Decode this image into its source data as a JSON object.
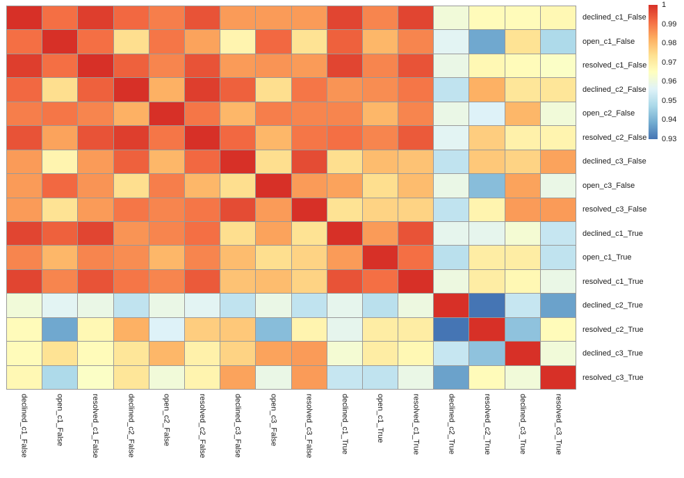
{
  "chart_data": {
    "type": "heatmap",
    "title": "",
    "xlabel": "",
    "ylabel": "",
    "grid_line_color": "#999999",
    "background_color": "#ffffff",
    "categories": [
      "declined_c1_False",
      "open_c1_False",
      "resolved_c1_False",
      "declined_c2_False",
      "open_c2_False",
      "resolved_c2_False",
      "declined_c3_False",
      "open_c3_False",
      "resolved_c3_False",
      "declined_c1_True",
      "open_c1_True",
      "resolved_c1_True",
      "declined_c2_True",
      "resolved_c2_True",
      "declined_c3_True",
      "resolved_c3_True"
    ],
    "matrix": [
      [
        1.0,
        0.991,
        0.998,
        0.992,
        0.989,
        0.995,
        0.985,
        0.985,
        0.985,
        0.997,
        0.988,
        0.997,
        0.961,
        0.966,
        0.966,
        0.967
      ],
      [
        0.991,
        1.0,
        0.991,
        0.974,
        0.99,
        0.984,
        0.968,
        0.992,
        0.973,
        0.993,
        0.981,
        0.988,
        0.957,
        0.938,
        0.973,
        0.948
      ],
      [
        0.998,
        0.991,
        1.0,
        0.993,
        0.988,
        0.995,
        0.985,
        0.986,
        0.985,
        0.997,
        0.988,
        0.995,
        0.959,
        0.967,
        0.966,
        0.964
      ],
      [
        0.992,
        0.974,
        0.993,
        1.0,
        0.982,
        0.998,
        0.993,
        0.974,
        0.99,
        0.986,
        0.987,
        0.99,
        0.951,
        0.982,
        0.972,
        0.972
      ],
      [
        0.989,
        0.99,
        0.988,
        0.982,
        1.0,
        0.99,
        0.981,
        0.989,
        0.988,
        0.988,
        0.981,
        0.988,
        0.959,
        0.956,
        0.981,
        0.961
      ],
      [
        0.995,
        0.984,
        0.995,
        0.998,
        0.99,
        1.0,
        0.992,
        0.981,
        0.99,
        0.991,
        0.988,
        0.994,
        0.957,
        0.977,
        0.969,
        0.968
      ],
      [
        0.985,
        0.968,
        0.985,
        0.993,
        0.981,
        0.992,
        1.0,
        0.974,
        0.996,
        0.974,
        0.98,
        0.979,
        0.951,
        0.978,
        0.976,
        0.984
      ],
      [
        0.985,
        0.992,
        0.986,
        0.974,
        0.989,
        0.981,
        0.974,
        1.0,
        0.985,
        0.984,
        0.974,
        0.98,
        0.959,
        0.942,
        0.984,
        0.959
      ],
      [
        0.985,
        0.973,
        0.985,
        0.99,
        0.988,
        0.99,
        0.996,
        0.985,
        1.0,
        0.973,
        0.976,
        0.976,
        0.951,
        0.968,
        0.985,
        0.985
      ],
      [
        0.997,
        0.993,
        0.997,
        0.986,
        0.988,
        0.991,
        0.974,
        0.984,
        0.973,
        1.0,
        0.985,
        0.995,
        0.958,
        0.958,
        0.962,
        0.952
      ],
      [
        0.988,
        0.981,
        0.988,
        0.987,
        0.981,
        0.988,
        0.98,
        0.974,
        0.976,
        0.985,
        1.0,
        0.991,
        0.95,
        0.97,
        0.97,
        0.951
      ],
      [
        0.997,
        0.988,
        0.995,
        0.99,
        0.988,
        0.994,
        0.979,
        0.98,
        0.976,
        0.995,
        0.991,
        1.0,
        0.96,
        0.97,
        0.967,
        0.959
      ],
      [
        0.961,
        0.957,
        0.959,
        0.951,
        0.959,
        0.957,
        0.951,
        0.959,
        0.951,
        0.958,
        0.95,
        0.96,
        1.0,
        0.93,
        0.952,
        0.937
      ],
      [
        0.966,
        0.938,
        0.967,
        0.982,
        0.956,
        0.977,
        0.978,
        0.942,
        0.968,
        0.958,
        0.97,
        0.97,
        0.93,
        1.0,
        0.943,
        0.966
      ],
      [
        0.966,
        0.973,
        0.966,
        0.972,
        0.981,
        0.969,
        0.976,
        0.984,
        0.985,
        0.962,
        0.97,
        0.967,
        0.952,
        0.943,
        1.0,
        0.961
      ],
      [
        0.967,
        0.948,
        0.964,
        0.972,
        0.961,
        0.968,
        0.984,
        0.959,
        0.985,
        0.952,
        0.951,
        0.959,
        0.937,
        0.966,
        0.961,
        1.0
      ]
    ],
    "colorbar": {
      "min": 0.93,
      "max": 1.0,
      "ticks": [
        {
          "label": "1",
          "value": 1.0
        },
        {
          "label": "0.99",
          "value": 0.99
        },
        {
          "label": "0.98",
          "value": 0.98
        },
        {
          "label": "0.97",
          "value": 0.97
        },
        {
          "label": "0.96",
          "value": 0.96
        },
        {
          "label": "0.95",
          "value": 0.95
        },
        {
          "label": "0.94",
          "value": 0.94
        },
        {
          "label": "0.93",
          "value": 0.93
        }
      ]
    },
    "colormap": {
      "name": "RdYlBu_r",
      "stops": [
        "#4575b4",
        "#74add1",
        "#abd9e9",
        "#e0f3f8",
        "#ffffbf",
        "#fee090",
        "#fdae61",
        "#f46d43",
        "#d73027"
      ]
    },
    "legend_position": "top-right",
    "grid": true
  }
}
